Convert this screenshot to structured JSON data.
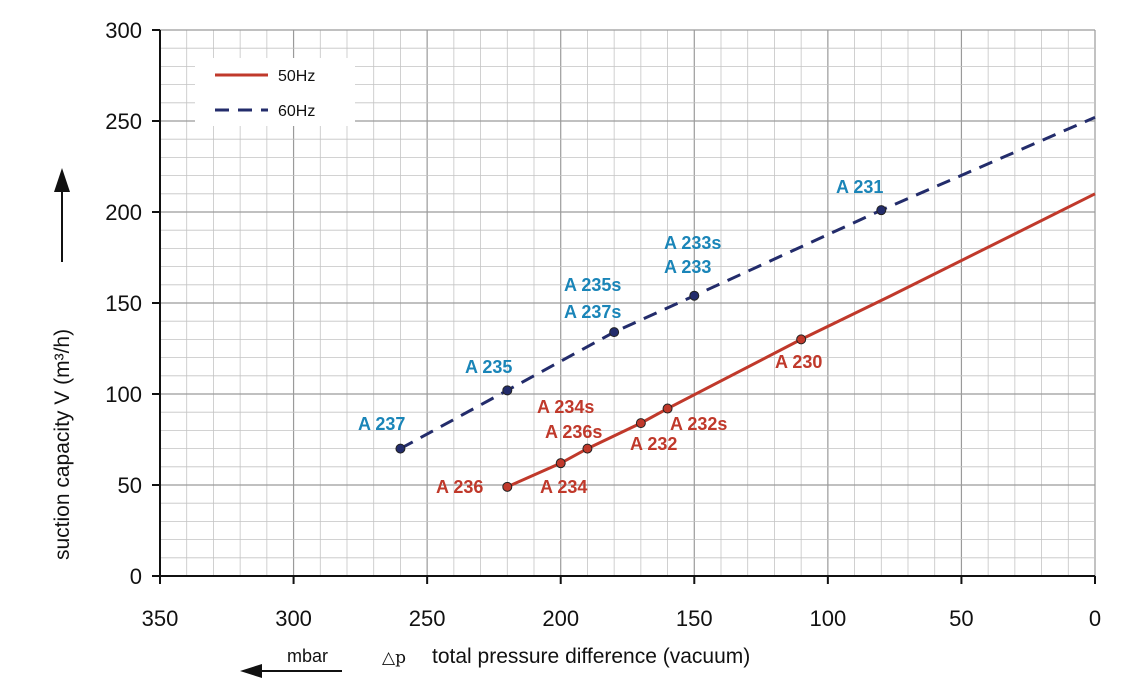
{
  "chart_data": {
    "type": "line",
    "xlabel_symbol": "△p",
    "xlabel": "total pressure difference (vacuum)",
    "unit_label": "mbar",
    "ylabel_html": "suction capacity V (m³/h)",
    "xlim": [
      350,
      0
    ],
    "ylim": [
      0,
      300
    ],
    "x_ticks": [
      350,
      300,
      250,
      200,
      150,
      100,
      50,
      0
    ],
    "y_ticks": [
      0,
      50,
      100,
      150,
      200,
      250,
      300
    ],
    "grid": true,
    "legend_position": "top-left",
    "series": [
      {
        "name": "50Hz",
        "color": "#c0392b",
        "dash": "solid",
        "line": [
          [
            220,
            49
          ],
          [
            200,
            62
          ],
          [
            190,
            70
          ],
          [
            170,
            84
          ],
          [
            160,
            92
          ],
          [
            110,
            130
          ],
          [
            75,
            155
          ],
          [
            0,
            210
          ]
        ],
        "points": [
          {
            "x": 220,
            "y": 49,
            "label": "A 236"
          },
          {
            "x": 200,
            "y": 62,
            "label": "A 234"
          },
          {
            "x": 190,
            "y": 70,
            "label": "A 236s"
          },
          {
            "x": 170,
            "y": 84,
            "label": "A 234s"
          },
          {
            "x": 160,
            "y": 92,
            "label": "A 232s"
          },
          {
            "x": 110,
            "y": 130,
            "label": "A 230"
          }
        ],
        "extra_labels": [
          "A 232"
        ]
      },
      {
        "name": "60Hz",
        "color": "#232c6b",
        "dash": "dashed",
        "line": [
          [
            260,
            70
          ],
          [
            220,
            102
          ],
          [
            180,
            134
          ],
          [
            150,
            154
          ],
          [
            80,
            201
          ],
          [
            0,
            252
          ]
        ],
        "points": [
          {
            "x": 260,
            "y": 70,
            "label": "A 237"
          },
          {
            "x": 220,
            "y": 102,
            "label": "A 235"
          },
          {
            "x": 180,
            "y": 134,
            "label": "A 235s\nA 237s"
          },
          {
            "x": 150,
            "y": 154,
            "label": "A 233s\nA 233"
          },
          {
            "x": 80,
            "y": 201,
            "label": "A 231"
          }
        ]
      }
    ],
    "point_label_color_60Hz": "#1a85b8"
  }
}
